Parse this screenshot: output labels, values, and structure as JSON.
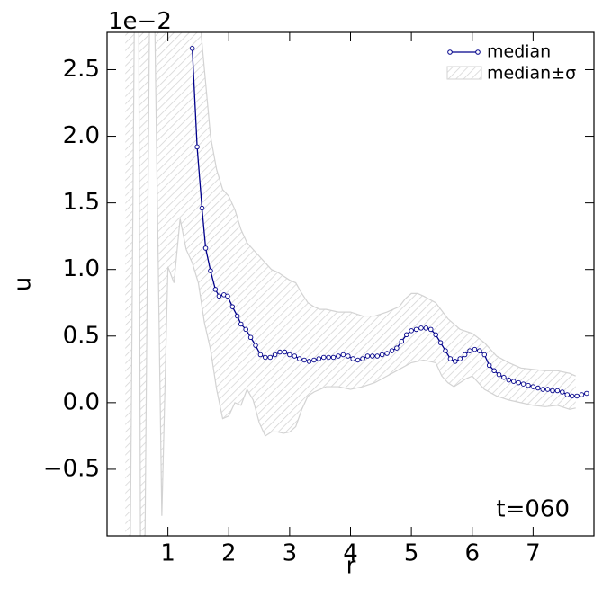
{
  "chart_data": {
    "type": "line",
    "xlabel": "r",
    "ylabel": "u",
    "offset_text": "1e−2",
    "annotation": "t=060",
    "xlim": [
      0,
      8
    ],
    "ylim": [
      -1.0,
      2.78
    ],
    "xticks": [
      1,
      2,
      3,
      4,
      5,
      6,
      7
    ],
    "yticks": [
      {
        "value": -0.5,
        "label": "−0.5"
      },
      {
        "value": 0,
        "label": "0.0"
      },
      0.5,
      {
        "value": 1,
        "label": "1.0"
      },
      1.5,
      {
        "value": 2,
        "label": "2.0"
      },
      2.5
    ],
    "legend": "upper right",
    "series": [
      {
        "name": "median",
        "color": "#00008b",
        "x": [
          1.4,
          1.48,
          1.56,
          1.62,
          1.7,
          1.78,
          1.84,
          1.92,
          1.98,
          2.06,
          2.14,
          2.2,
          2.28,
          2.36,
          2.44,
          2.52,
          2.6,
          2.68,
          2.76,
          2.84,
          2.92,
          3.0,
          3.08,
          3.16,
          3.24,
          3.32,
          3.4,
          3.48,
          3.56,
          3.64,
          3.72,
          3.8,
          3.88,
          3.96,
          4.04,
          4.12,
          4.2,
          4.28,
          4.36,
          4.44,
          4.52,
          4.6,
          4.68,
          4.76,
          4.84,
          4.92,
          5.0,
          5.08,
          5.16,
          5.24,
          5.32,
          5.4,
          5.48,
          5.56,
          5.64,
          5.72,
          5.8,
          5.88,
          5.96,
          6.04,
          6.12,
          6.2,
          6.28,
          6.36,
          6.44,
          6.52,
          6.6,
          6.68,
          6.76,
          6.84,
          6.92,
          7.0,
          7.08,
          7.16,
          7.24,
          7.32,
          7.4,
          7.48,
          7.56,
          7.64,
          7.72,
          7.8,
          7.88
        ],
        "values": [
          2.66,
          1.92,
          1.46,
          1.16,
          0.99,
          0.85,
          0.8,
          0.81,
          0.8,
          0.72,
          0.65,
          0.59,
          0.55,
          0.49,
          0.43,
          0.36,
          0.34,
          0.34,
          0.36,
          0.38,
          0.38,
          0.36,
          0.35,
          0.33,
          0.32,
          0.31,
          0.32,
          0.33,
          0.34,
          0.34,
          0.34,
          0.35,
          0.36,
          0.35,
          0.33,
          0.32,
          0.33,
          0.35,
          0.35,
          0.35,
          0.36,
          0.37,
          0.39,
          0.41,
          0.46,
          0.51,
          0.54,
          0.55,
          0.56,
          0.56,
          0.55,
          0.51,
          0.45,
          0.39,
          0.33,
          0.31,
          0.33,
          0.36,
          0.39,
          0.4,
          0.39,
          0.36,
          0.28,
          0.24,
          0.21,
          0.19,
          0.17,
          0.16,
          0.15,
          0.14,
          0.13,
          0.12,
          0.11,
          0.1,
          0.1,
          0.09,
          0.09,
          0.08,
          0.06,
          0.05,
          0.05,
          0.06,
          0.07
        ]
      }
    ],
    "band": {
      "name": "median±σ",
      "color": "#d3d3d3",
      "x_upper": [
        0.3,
        0.5,
        1.0,
        1.5,
        1.6,
        1.7,
        1.8,
        1.9,
        2.0,
        2.1,
        2.2,
        2.3,
        2.4,
        2.5,
        2.6,
        2.7,
        2.8,
        2.9,
        3.0,
        3.1,
        3.2,
        3.3,
        3.4,
        3.5,
        3.6,
        3.8,
        4.0,
        4.2,
        4.4,
        4.6,
        4.8,
        4.9,
        5.0,
        5.1,
        5.2,
        5.4,
        5.6,
        5.8,
        6.0,
        6.2,
        6.4,
        6.6,
        6.8,
        7.0,
        7.2,
        7.4,
        7.6,
        7.7
      ],
      "upper": [
        3.0,
        3.0,
        3.0,
        3.0,
        2.5,
        2.0,
        1.75,
        1.6,
        1.55,
        1.45,
        1.3,
        1.2,
        1.15,
        1.1,
        1.05,
        1.0,
        0.98,
        0.95,
        0.92,
        0.9,
        0.82,
        0.75,
        0.72,
        0.7,
        0.7,
        0.68,
        0.68,
        0.65,
        0.65,
        0.68,
        0.72,
        0.78,
        0.82,
        0.82,
        0.8,
        0.75,
        0.63,
        0.55,
        0.52,
        0.45,
        0.35,
        0.3,
        0.26,
        0.25,
        0.24,
        0.24,
        0.22,
        0.2
      ],
      "x_lower": [
        0.3,
        0.38,
        0.45,
        0.52,
        0.55,
        0.62,
        0.7,
        0.78,
        0.9,
        1.0,
        1.1,
        1.2,
        1.3,
        1.4,
        1.5,
        1.6,
        1.7,
        1.8,
        1.9,
        2.0,
        2.1,
        2.2,
        2.3,
        2.4,
        2.5,
        2.6,
        2.7,
        2.8,
        2.9,
        3.0,
        3.1,
        3.2,
        3.3,
        3.4,
        3.6,
        3.8,
        4.0,
        4.2,
        4.4,
        4.6,
        4.8,
        5.0,
        5.2,
        5.4,
        5.5,
        5.6,
        5.7,
        5.8,
        5.9,
        6.0,
        6.2,
        6.4,
        6.6,
        6.8,
        7.0,
        7.2,
        7.4,
        7.6,
        7.7
      ],
      "lower": [
        -1.2,
        -1.2,
        3.0,
        3.0,
        -1.2,
        -1.2,
        3.0,
        3.0,
        -0.85,
        1.02,
        0.9,
        1.38,
        1.15,
        1.05,
        0.9,
        0.6,
        0.4,
        0.1,
        -0.12,
        -0.1,
        0.0,
        -0.02,
        0.1,
        0.02,
        -0.15,
        -0.25,
        -0.22,
        -0.22,
        -0.23,
        -0.22,
        -0.18,
        -0.05,
        0.05,
        0.08,
        0.12,
        0.12,
        0.1,
        0.12,
        0.15,
        0.2,
        0.25,
        0.3,
        0.32,
        0.3,
        0.2,
        0.15,
        0.12,
        0.15,
        0.18,
        0.2,
        0.1,
        0.05,
        0.02,
        0.0,
        -0.02,
        -0.03,
        -0.02,
        -0.05,
        -0.04
      ]
    }
  }
}
